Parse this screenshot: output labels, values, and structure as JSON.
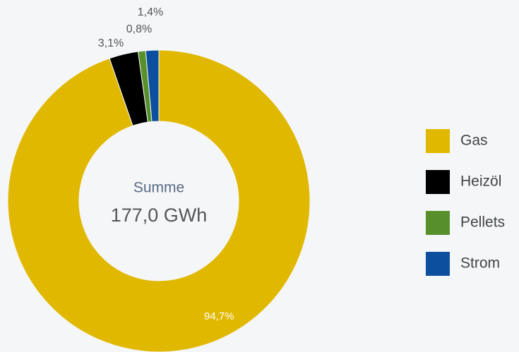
{
  "chart_data": {
    "type": "donut",
    "center_title": "Summe",
    "center_value": "177,0 GWh",
    "categories": [
      "Gas",
      "Heizöl",
      "Pellets",
      "Strom"
    ],
    "values": [
      94.7,
      3.1,
      0.8,
      1.4
    ],
    "value_labels": [
      "94,7%",
      "3,1%",
      "0,8%",
      "1,4%"
    ],
    "colors": [
      "#e1b800",
      "#000000",
      "#57902b",
      "#0c4f9e"
    ],
    "legend": "right"
  }
}
